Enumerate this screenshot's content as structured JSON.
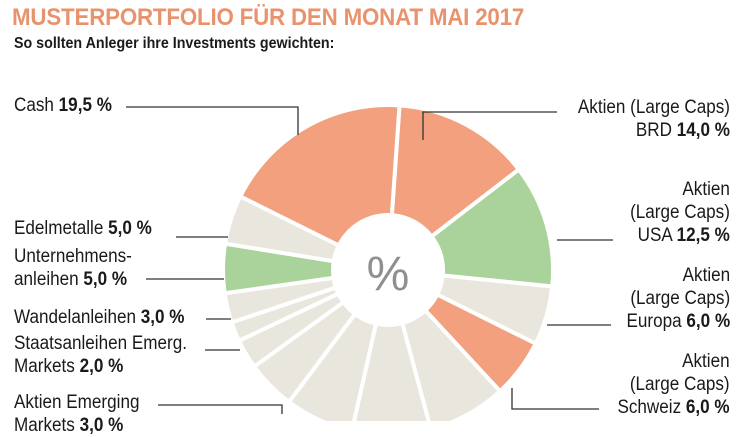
{
  "chart_data": {
    "type": "pie",
    "title": "MUSTERPORTFOLIO FÜR DEN MONAT MAI 2017",
    "subtitle": "So sollten Anleger ihre Investments gewichten:",
    "center_label": "%",
    "slices": [
      {
        "label": "Aktien (Large Caps) BRD",
        "value": 14.0,
        "value_text": "14,0 %",
        "color": "#f2a07e"
      },
      {
        "label": "Aktien (Large Caps) USA",
        "value": 12.5,
        "value_text": "12,5 %",
        "color": "#a9d39a"
      },
      {
        "label": "Aktien (Large Caps) Europa",
        "value": 6.0,
        "value_text": "6,0 %",
        "color": "#e9e6dd"
      },
      {
        "label": "Aktien (Large Caps) Schweiz",
        "value": 6.0,
        "value_text": "6,0 %",
        "color": "#f2a07e"
      },
      {
        "label": "",
        "value": 8.0,
        "color": "#e9e6dd"
      },
      {
        "label": "",
        "value": 8.0,
        "color": "#e9e6dd"
      },
      {
        "label": "",
        "value": 7.0,
        "color": "#e9e6dd"
      },
      {
        "label": "",
        "value": 5.0,
        "color": "#e9e6dd"
      },
      {
        "label": "Aktien Emerging Markets",
        "value": 3.0,
        "value_text": "3,0 %",
        "color": "#e9e6dd"
      },
      {
        "label": "Staatsanleihen Emerg. Markets",
        "value": 2.0,
        "value_text": "2,0 %",
        "color": "#e9e6dd"
      },
      {
        "label": "Wandelanleihen",
        "value": 3.0,
        "value_text": "3,0 %",
        "color": "#e9e6dd"
      },
      {
        "label": "Unternehmensanleihen",
        "value": 5.0,
        "value_text": "5,0 %",
        "color": "#a9d39a"
      },
      {
        "label": "Edelmetalle",
        "value": 5.0,
        "value_text": "5,0 %",
        "color": "#e9e6dd"
      },
      {
        "label": "Cash",
        "value": 19.5,
        "value_text": "19,5 %",
        "color": "#f2a07e"
      }
    ],
    "labels": {
      "brd": {
        "line1": "Aktien (Large Caps)",
        "line2": "BRD",
        "value": "14,0 %"
      },
      "usa": {
        "line1": "Aktien",
        "line2": "(Large Caps)",
        "line3": "USA",
        "value": "12,5 %"
      },
      "europa": {
        "line1": "Aktien",
        "line2": "(Large Caps)",
        "line3": "Europa",
        "value": "6,0 %"
      },
      "schweiz": {
        "line1": "Aktien",
        "line2": "(Large Caps)",
        "line3": "Schweiz",
        "value": "6,0 %"
      },
      "cash": {
        "line1": "Cash",
        "value": "19,5 %"
      },
      "edelmetalle": {
        "line1": "Edelmetalle",
        "value": "5,0 %"
      },
      "unternehmensanleihen": {
        "line1": "Unternehmens-",
        "line2": "anleihen",
        "value": "5,0 %"
      },
      "wandelanleihen": {
        "line1": "Wandelanleihen",
        "value": "3,0 %"
      },
      "staatsanleihen": {
        "line1": "Staatsanleihen Emerg.",
        "line2": "Markets",
        "value": "2,0 %"
      },
      "emerging": {
        "line1": "Aktien Emerging",
        "line2": "Markets",
        "value": "3,0 %"
      }
    }
  }
}
